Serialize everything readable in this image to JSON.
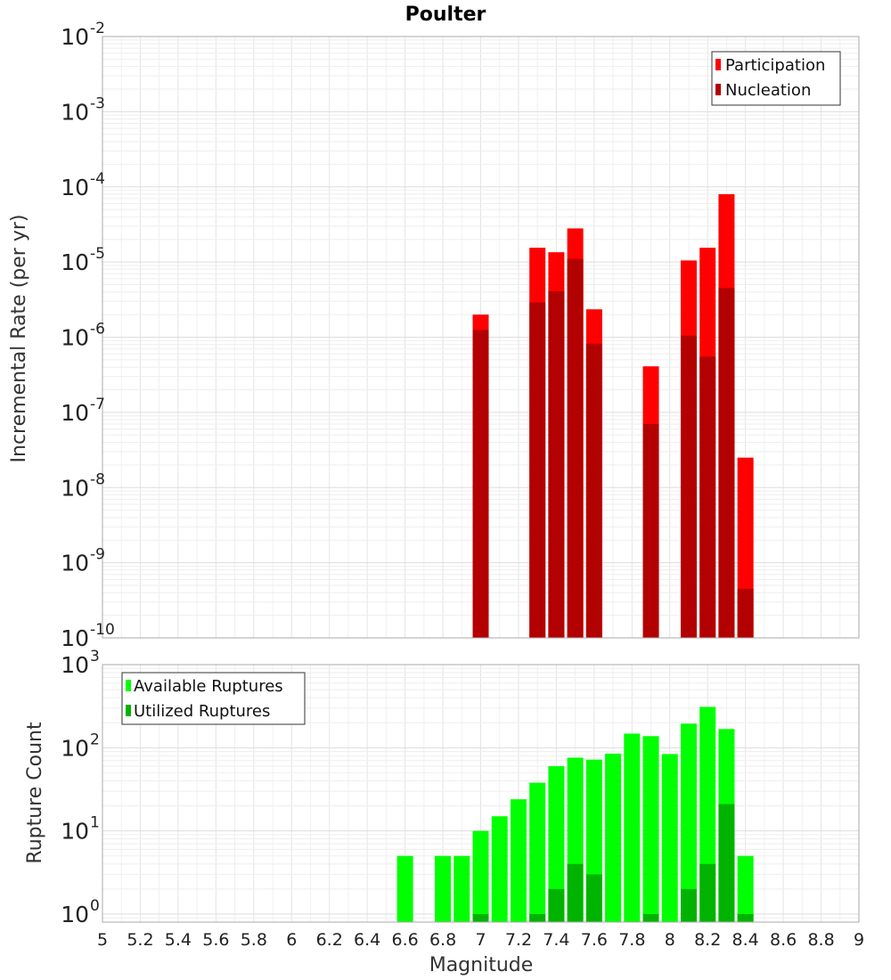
{
  "chart_data": [
    {
      "type": "bar",
      "title": "Poulter",
      "xlabel": "",
      "ylabel": "Incremental Rate (per yr)",
      "yscale": "log",
      "ylim": [
        1e-10,
        0.01
      ],
      "ytick_exponents": [
        -2,
        -3,
        -4,
        -5,
        -6,
        -7,
        -8,
        -9,
        -10
      ],
      "legend_position": "top-right",
      "x": [
        7.0,
        7.3,
        7.4,
        7.5,
        7.6,
        7.9,
        8.1,
        8.2,
        8.3,
        8.4
      ],
      "series": [
        {
          "name": "Participation",
          "color": "#ff0000",
          "values": [
            2e-06,
            1.55e-05,
            1.35e-05,
            2.8e-05,
            2.35e-06,
            4.1e-07,
            1.05e-05,
            1.55e-05,
            8e-05,
            2.5e-08
          ]
        },
        {
          "name": "Nucleation",
          "color": "#b30000",
          "values": [
            1.25e-06,
            2.9e-06,
            4.1e-06,
            1.1e-05,
            8.2e-07,
            7e-08,
            1.05e-06,
            5.5e-07,
            4.5e-06,
            4.5e-10
          ]
        }
      ]
    },
    {
      "type": "bar",
      "title": "",
      "xlabel": "Magnitude",
      "ylabel": "Rupture Count",
      "yscale": "log",
      "ylim": [
        0.8,
        1000
      ],
      "ytick_exponents": [
        3,
        2,
        1,
        0
      ],
      "legend_position": "top-left",
      "x": [
        6.6,
        6.8,
        6.9,
        7.0,
        7.1,
        7.2,
        7.3,
        7.4,
        7.5,
        7.6,
        7.7,
        7.8,
        7.9,
        8.0,
        8.1,
        8.2,
        8.3,
        8.4
      ],
      "series": [
        {
          "name": "Available Ruptures",
          "color": "#00ff00",
          "values": [
            5,
            5,
            5,
            10,
            15,
            24,
            38,
            60,
            76,
            72,
            85,
            148,
            138,
            84,
            195,
            310,
            168,
            5
          ]
        },
        {
          "name": "Utilized Ruptures",
          "color": "#00b300",
          "values": [
            0,
            0,
            0,
            1,
            0,
            0,
            1,
            2,
            4,
            3,
            0,
            0,
            1,
            0,
            2,
            4,
            21,
            1
          ]
        }
      ],
      "xlim": [
        5,
        9
      ],
      "xticks": [
        "5",
        "5.2",
        "5.4",
        "5.6",
        "5.8",
        "6",
        "6.2",
        "6.4",
        "6.6",
        "6.8",
        "7",
        "7.2",
        "7.4",
        "7.6",
        "7.8",
        "8",
        "8.2",
        "8.4",
        "8.6",
        "8.8",
        "9"
      ]
    }
  ]
}
